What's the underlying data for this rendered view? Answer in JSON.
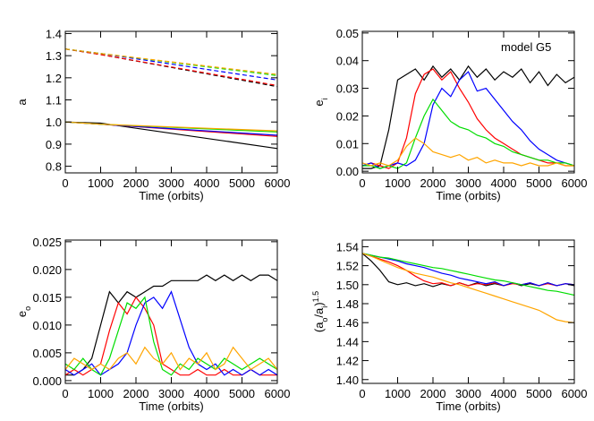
{
  "chart_data": [
    {
      "type": "line",
      "xlabel": "Time (orbits)",
      "ylabel": [
        {
          "text": "a"
        }
      ],
      "xlim": [
        0,
        6000
      ],
      "ylim": [
        0.77,
        1.41
      ],
      "xticks": [
        0,
        1000,
        2000,
        3000,
        4000,
        5000,
        6000
      ],
      "yticks": [
        0.8,
        0.9,
        {
          "value": 1.0,
          "label": "1.0"
        },
        1.1,
        1.2,
        1.3,
        1.4
      ],
      "x": [
        0,
        1000,
        6000
      ],
      "series": [
        {
          "color": "#000000",
          "dash": false,
          "values": [
            1.0,
            0.995,
            0.88
          ]
        },
        {
          "color": "#ff0000",
          "dash": false,
          "values": [
            1.0,
            0.99,
            0.935
          ]
        },
        {
          "color": "#0000ff",
          "dash": false,
          "values": [
            1.0,
            0.99,
            0.94
          ]
        },
        {
          "color": "#00dd00",
          "dash": false,
          "values": [
            1.0,
            0.99,
            0.955
          ]
        },
        {
          "color": "#ffa500",
          "dash": false,
          "values": [
            1.0,
            0.99,
            0.96
          ]
        },
        {
          "color": "#000000",
          "dash": true,
          "values": [
            1.33,
            1.305,
            1.16
          ]
        },
        {
          "color": "#ff0000",
          "dash": true,
          "values": [
            1.33,
            1.305,
            1.165
          ]
        },
        {
          "color": "#0000ff",
          "dash": true,
          "values": [
            1.33,
            1.31,
            1.19
          ]
        },
        {
          "color": "#00dd00",
          "dash": true,
          "values": [
            1.33,
            1.31,
            1.21
          ]
        },
        {
          "color": "#ffa500",
          "dash": true,
          "values": [
            1.33,
            1.31,
            1.215
          ]
        }
      ]
    },
    {
      "type": "line",
      "xlabel": "Time (orbits)",
      "ylabel": [
        {
          "text": "e"
        },
        {
          "text": "i",
          "pos": "sub"
        }
      ],
      "annotation": "model G5",
      "xlim": [
        0,
        6000
      ],
      "ylim": [
        -0.0006,
        0.0506
      ],
      "xticks": [
        0,
        1000,
        2000,
        3000,
        4000,
        5000,
        6000
      ],
      "yticks": [
        {
          "value": 0,
          "label": "0.00"
        },
        0.01,
        0.02,
        0.03,
        0.04,
        0.05
      ],
      "x": [
        0,
        250,
        500,
        750,
        1000,
        1250,
        1500,
        1750,
        2000,
        2250,
        2500,
        2750,
        3000,
        3250,
        3500,
        3750,
        4000,
        4250,
        4500,
        4750,
        5000,
        5250,
        5500,
        5750,
        6000
      ],
      "series": [
        {
          "color": "#000000",
          "values": [
            0.001,
            0.001,
            0.002,
            0.015,
            0.033,
            0.035,
            0.037,
            0.033,
            0.038,
            0.034,
            0.037,
            0.033,
            0.038,
            0.034,
            0.037,
            0.033,
            0.036,
            0.034,
            0.037,
            0.032,
            0.036,
            0.031,
            0.035,
            0.032,
            0.034
          ]
        },
        {
          "color": "#ff0000",
          "values": [
            0.002,
            0.003,
            0.002,
            0.001,
            0.003,
            0.012,
            0.028,
            0.035,
            0.037,
            0.033,
            0.036,
            0.03,
            0.025,
            0.019,
            0.015,
            0.012,
            0.01,
            0.008,
            0.006,
            0.005,
            0.004,
            0.003,
            0.003,
            0.002,
            0.002
          ]
        },
        {
          "color": "#0000ff",
          "values": [
            0.002,
            0.003,
            0.001,
            0.002,
            0.003,
            0.002,
            0.004,
            0.01,
            0.024,
            0.03,
            0.027,
            0.033,
            0.036,
            0.029,
            0.03,
            0.026,
            0.022,
            0.018,
            0.015,
            0.011,
            0.008,
            0.006,
            0.004,
            0.003,
            0.002
          ]
        },
        {
          "color": "#00dd00",
          "values": [
            0.002,
            0.002,
            0.001,
            0.002,
            0.001,
            0.003,
            0.012,
            0.02,
            0.026,
            0.022,
            0.018,
            0.016,
            0.015,
            0.013,
            0.012,
            0.01,
            0.009,
            0.007,
            0.006,
            0.005,
            0.004,
            0.004,
            0.003,
            0.003,
            0.002
          ]
        },
        {
          "color": "#ffa500",
          "values": [
            0.003,
            0.002,
            0.003,
            0.002,
            0.004,
            0.009,
            0.012,
            0.01,
            0.007,
            0.006,
            0.005,
            0.006,
            0.004,
            0.005,
            0.003,
            0.004,
            0.003,
            0.003,
            0.002,
            0.003,
            0.002,
            0.002,
            0.003,
            0.002,
            0.002
          ]
        }
      ]
    },
    {
      "type": "line",
      "xlabel": "Time (orbits)",
      "ylabel": [
        {
          "text": "e"
        },
        {
          "text": "o",
          "pos": "sub"
        }
      ],
      "xlim": [
        0,
        6000
      ],
      "ylim": [
        -0.0005,
        0.0253
      ],
      "xticks": [
        0,
        1000,
        2000,
        3000,
        4000,
        5000,
        6000
      ],
      "yticks": [
        {
          "value": 0,
          "label": "0.000"
        },
        {
          "value": 0.005,
          "label": "0.005"
        },
        {
          "value": 0.01,
          "label": "0.010"
        },
        {
          "value": 0.015,
          "label": "0.015"
        },
        {
          "value": 0.02,
          "label": "0.020"
        },
        {
          "value": 0.025,
          "label": "0.025"
        }
      ],
      "x": [
        0,
        250,
        500,
        750,
        1000,
        1250,
        1500,
        1750,
        2000,
        2250,
        2500,
        2750,
        3000,
        3250,
        3500,
        3750,
        4000,
        4250,
        4500,
        4750,
        5000,
        5250,
        5500,
        5750,
        6000
      ],
      "series": [
        {
          "color": "#000000",
          "values": [
            0.001,
            0.001,
            0.002,
            0.004,
            0.01,
            0.016,
            0.014,
            0.016,
            0.015,
            0.016,
            0.017,
            0.017,
            0.018,
            0.018,
            0.018,
            0.018,
            0.019,
            0.018,
            0.019,
            0.018,
            0.019,
            0.018,
            0.019,
            0.019,
            0.018
          ]
        },
        {
          "color": "#ff0000",
          "values": [
            0.001,
            0.002,
            0.001,
            0.002,
            0.003,
            0.009,
            0.014,
            0.012,
            0.015,
            0.013,
            0.01,
            0.003,
            0.002,
            0.001,
            0.001,
            0.002,
            0.001,
            0.001,
            0.002,
            0.001,
            0.001,
            0.002,
            0.001,
            0.001,
            0.001
          ]
        },
        {
          "color": "#0000ff",
          "values": [
            0.002,
            0.001,
            0.002,
            0.003,
            0.001,
            0.002,
            0.003,
            0.005,
            0.01,
            0.014,
            0.015,
            0.013,
            0.016,
            0.011,
            0.006,
            0.003,
            0.002,
            0.003,
            0.001,
            0.002,
            0.001,
            0.002,
            0.001,
            0.002,
            0.001
          ]
        },
        {
          "color": "#00dd00",
          "values": [
            0.003,
            0.002,
            0.004,
            0.002,
            0.001,
            0.004,
            0.009,
            0.014,
            0.013,
            0.015,
            0.007,
            0.002,
            0.001,
            0.003,
            0.002,
            0.004,
            0.003,
            0.002,
            0.004,
            0.003,
            0.002,
            0.003,
            0.004,
            0.003,
            0.002
          ]
        },
        {
          "color": "#ffa500",
          "values": [
            0.002,
            0.004,
            0.003,
            0.002,
            0.003,
            0.002,
            0.004,
            0.005,
            0.003,
            0.006,
            0.004,
            0.003,
            0.005,
            0.002,
            0.004,
            0.003,
            0.005,
            0.002,
            0.003,
            0.006,
            0.004,
            0.002,
            0.003,
            0.004,
            0.002
          ]
        }
      ]
    },
    {
      "type": "line",
      "xlabel": "Time (orbits)",
      "ylabel": [
        {
          "text": "(a"
        },
        {
          "text": "o",
          "pos": "sub"
        },
        {
          "text": "/a"
        },
        {
          "text": "i",
          "pos": "sub"
        },
        {
          "text": ")"
        },
        {
          "text": "1.5",
          "pos": "sup"
        }
      ],
      "xlim": [
        0,
        6000
      ],
      "ylim": [
        1.396,
        1.547
      ],
      "xticks": [
        0,
        1000,
        2000,
        3000,
        4000,
        5000,
        6000
      ],
      "yticks": [
        {
          "value": 1.4,
          "label": "1.40"
        },
        1.42,
        1.44,
        1.46,
        1.48,
        {
          "value": 1.5,
          "label": "1.50"
        },
        1.52,
        1.54
      ],
      "x": [
        0,
        250,
        500,
        750,
        1000,
        1250,
        1500,
        1750,
        2000,
        2250,
        2500,
        2750,
        3000,
        3250,
        3500,
        3750,
        4000,
        4250,
        4500,
        4750,
        5000,
        5250,
        5500,
        5750,
        6000
      ],
      "series": [
        {
          "color": "#000000",
          "values": [
            1.533,
            1.525,
            1.515,
            1.503,
            1.5,
            1.502,
            1.499,
            1.501,
            1.498,
            1.501,
            1.499,
            1.502,
            1.499,
            1.502,
            1.499,
            1.501,
            1.499,
            1.502,
            1.499,
            1.501,
            1.499,
            1.502,
            1.499,
            1.501,
            1.499
          ]
        },
        {
          "color": "#ff0000",
          "values": [
            1.533,
            1.53,
            1.527,
            1.524,
            1.52,
            1.515,
            1.509,
            1.504,
            1.501,
            1.502,
            1.499,
            1.502,
            1.499,
            1.501,
            1.5,
            1.502,
            1.499,
            1.501,
            1.5,
            1.502,
            1.499,
            1.501,
            1.499,
            1.501,
            1.5
          ]
        },
        {
          "color": "#0000ff",
          "values": [
            1.533,
            1.531,
            1.529,
            1.527,
            1.525,
            1.522,
            1.52,
            1.518,
            1.515,
            1.512,
            1.51,
            1.507,
            1.505,
            1.503,
            1.501,
            1.503,
            1.499,
            1.502,
            1.5,
            1.502,
            1.499,
            1.502,
            1.499,
            1.501,
            1.5
          ]
        },
        {
          "color": "#00dd00",
          "values": [
            1.533,
            1.531,
            1.529,
            1.528,
            1.526,
            1.524,
            1.522,
            1.52,
            1.518,
            1.517,
            1.515,
            1.513,
            1.511,
            1.509,
            1.507,
            1.505,
            1.504,
            1.502,
            1.5,
            1.498,
            1.496,
            1.494,
            1.493,
            1.491,
            1.489
          ]
        },
        {
          "color": "#ffa500",
          "values": [
            1.533,
            1.53,
            1.526,
            1.522,
            1.518,
            1.515,
            1.512,
            1.51,
            1.508,
            1.505,
            1.502,
            1.5,
            1.497,
            1.494,
            1.491,
            1.488,
            1.485,
            1.482,
            1.479,
            1.476,
            1.473,
            1.468,
            1.463,
            1.461,
            1.46
          ]
        }
      ]
    }
  ]
}
